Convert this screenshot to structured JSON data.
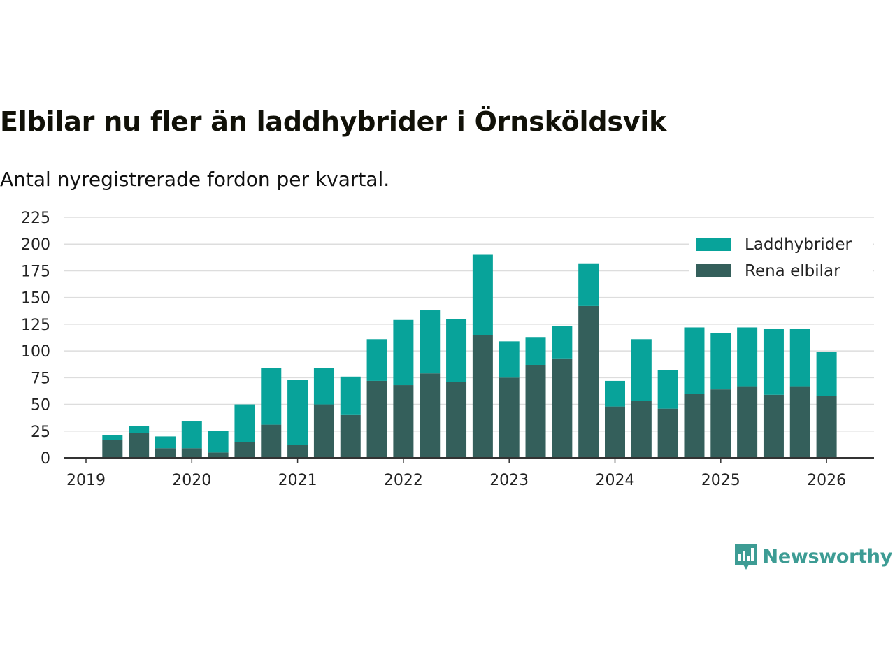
{
  "header": {
    "title": "Elbilar nu fler än laddhybrider i Örnsköldsvik",
    "subtitle": "Antal nyregistrerade fordon per kvartal."
  },
  "brand": {
    "name": "Newsworthy",
    "icon": "bar-chart-logo-icon"
  },
  "colors": {
    "laddhybrider": "#08a39a",
    "rena_elbilar": "#345f5b",
    "grid": "#dddddd",
    "axis": "#333333",
    "brand": "#3d9c94"
  },
  "chart_data": {
    "type": "bar",
    "stacked": true,
    "title": "Elbilar nu fler än laddhybrider i Örnsköldsvik",
    "subtitle": "Antal nyregistrerade fordon per kvartal.",
    "xlabel": "",
    "ylabel": "",
    "ylim": [
      0,
      225
    ],
    "yticks": [
      0,
      25,
      50,
      75,
      100,
      125,
      150,
      175,
      200,
      225
    ],
    "xticks": [
      "2019",
      "2020",
      "2021",
      "2022",
      "2023",
      "2024",
      "2025",
      "2026"
    ],
    "grid": true,
    "legend_position": "top-right",
    "categories": [
      "2019 Q2",
      "2019 Q3",
      "2019 Q4",
      "2020 Q1",
      "2020 Q2",
      "2020 Q3",
      "2020 Q4",
      "2021 Q1",
      "2021 Q2",
      "2021 Q3",
      "2021 Q4",
      "2022 Q1",
      "2022 Q2",
      "2022 Q3",
      "2022 Q4",
      "2023 Q1",
      "2023 Q2",
      "2023 Q3",
      "2023 Q4",
      "2024 Q1",
      "2024 Q2",
      "2024 Q3",
      "2024 Q4",
      "2025 Q1",
      "2025 Q2",
      "2025 Q3",
      "2025 Q4",
      "2026 Q1"
    ],
    "series": [
      {
        "name": "Rena elbilar",
        "values": [
          17,
          23,
          9,
          9,
          5,
          15,
          31,
          12,
          50,
          40,
          72,
          68,
          79,
          71,
          115,
          75,
          87,
          93,
          142,
          48,
          53,
          46,
          60,
          64,
          67,
          59,
          67,
          58
        ]
      },
      {
        "name": "Laddhybrider",
        "values": [
          4,
          7,
          11,
          25,
          20,
          35,
          53,
          61,
          34,
          36,
          39,
          61,
          59,
          59,
          75,
          34,
          26,
          30,
          40,
          24,
          58,
          36,
          62,
          53,
          55,
          62,
          54,
          41
        ]
      }
    ],
    "legend": [
      {
        "name": "Laddhybrider"
      },
      {
        "name": "Rena elbilar"
      }
    ]
  }
}
